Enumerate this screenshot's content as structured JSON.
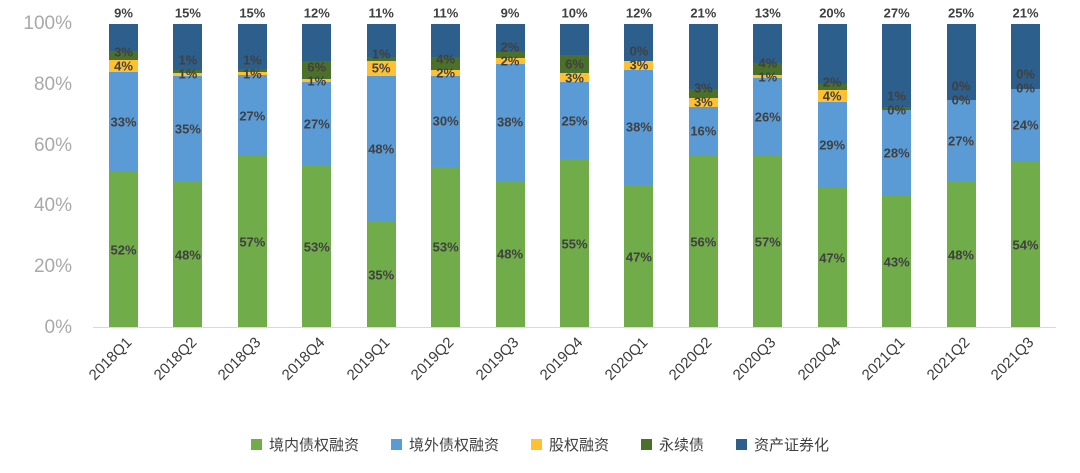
{
  "chart_data": {
    "type": "bar",
    "variant": "stacked-100-percent",
    "title": "",
    "xlabel": "",
    "ylabel": "",
    "label_suffix": "%",
    "categories": [
      "2018Q1",
      "2018Q2",
      "2018Q3",
      "2018Q4",
      "2019Q1",
      "2019Q2",
      "2019Q3",
      "2019Q4",
      "2020Q1",
      "2020Q2",
      "2020Q3",
      "2020Q4",
      "2021Q1",
      "2021Q2",
      "2021Q3"
    ],
    "series": [
      {
        "name": "境内债权融资",
        "color": "#71AC4A",
        "values": [
          52,
          48,
          57,
          53,
          35,
          53,
          48,
          55,
          47,
          56,
          57,
          47,
          43,
          48,
          54
        ]
      },
      {
        "name": "境外债权融资",
        "color": "#5B9BD5",
        "values": [
          33,
          35,
          27,
          27,
          48,
          30,
          38,
          25,
          38,
          16,
          26,
          29,
          28,
          27,
          24
        ]
      },
      {
        "name": "股权融资",
        "color": "#FFC131",
        "values": [
          4,
          1,
          1,
          1,
          5,
          2,
          2,
          3,
          3,
          3,
          1,
          4,
          0,
          0,
          0
        ]
      },
      {
        "name": "永续债",
        "color": "#4A7029",
        "values": [
          3,
          1,
          1,
          6,
          1,
          4,
          2,
          6,
          0,
          3,
          4,
          2,
          1,
          0,
          0
        ]
      },
      {
        "name": "资产证券化",
        "color": "#2C5F8C",
        "values": [
          9,
          15,
          15,
          12,
          11,
          11,
          9,
          10,
          12,
          21,
          13,
          20,
          27,
          25,
          21
        ]
      }
    ],
    "y_axis": {
      "ticks": [
        "0%",
        "20%",
        "40%",
        "60%",
        "80%",
        "100%"
      ],
      "min": 0,
      "max": 100,
      "grid": false
    },
    "legend": {
      "position": "bottom"
    }
  },
  "colors": {
    "background": "#FFFFFF",
    "axis_text": "#A9A9A9",
    "category_text": "#3B3B3B",
    "data_label_text": "#404040",
    "axis_line": "#D9D9D9"
  }
}
